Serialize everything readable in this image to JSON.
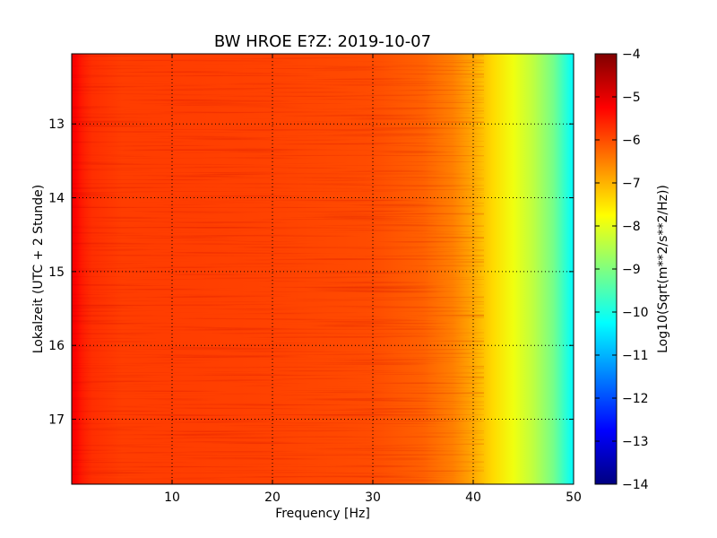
{
  "chart_data": {
    "type": "heatmap",
    "title": "BW HROE E?Z: 2019-10-07",
    "xlabel": "Frequency [Hz]",
    "ylabel": "Lokalzeit (UTC + 2 Stunde)",
    "xlim": [
      0,
      50
    ],
    "ylim": [
      17.88,
      12.05
    ],
    "x_ticks": [
      {
        "value": 10,
        "label": "10"
      },
      {
        "value": 20,
        "label": "20"
      },
      {
        "value": 30,
        "label": "30"
      },
      {
        "value": 40,
        "label": "40"
      },
      {
        "value": 50,
        "label": "50"
      }
    ],
    "y_ticks": [
      {
        "value": 13,
        "label": "13"
      },
      {
        "value": 14,
        "label": "14"
      },
      {
        "value": 15,
        "label": "15"
      },
      {
        "value": 16,
        "label": "16"
      },
      {
        "value": 17,
        "label": "17"
      }
    ],
    "grid": true,
    "colorbar": {
      "label": "Log10(Sqrt(m**2/s**2/Hz))",
      "colormap": "jet",
      "range": [
        -14,
        -4
      ],
      "ticks": [
        {
          "value": -4,
          "label": "−4"
        },
        {
          "value": -5,
          "label": "−5"
        },
        {
          "value": -6,
          "label": "−6"
        },
        {
          "value": -7,
          "label": "−7"
        },
        {
          "value": -8,
          "label": "−8"
        },
        {
          "value": -9,
          "label": "−9"
        },
        {
          "value": -10,
          "label": "−10"
        },
        {
          "value": -11,
          "label": "−11"
        },
        {
          "value": -12,
          "label": "−12"
        },
        {
          "value": -13,
          "label": "−13"
        },
        {
          "value": -14,
          "label": "−14"
        }
      ]
    },
    "frequency_profile": {
      "x": [
        0,
        0.5,
        1,
        2,
        5,
        10,
        20,
        30,
        35,
        38,
        40,
        42,
        44,
        46,
        48,
        49.5,
        50
      ],
      "value": [
        -5.1,
        -5.3,
        -5.5,
        -5.7,
        -5.85,
        -5.85,
        -5.9,
        -6.0,
        -6.2,
        -6.5,
        -6.9,
        -7.4,
        -7.9,
        -8.4,
        -9.1,
        -10.0,
        -10.3
      ]
    }
  }
}
